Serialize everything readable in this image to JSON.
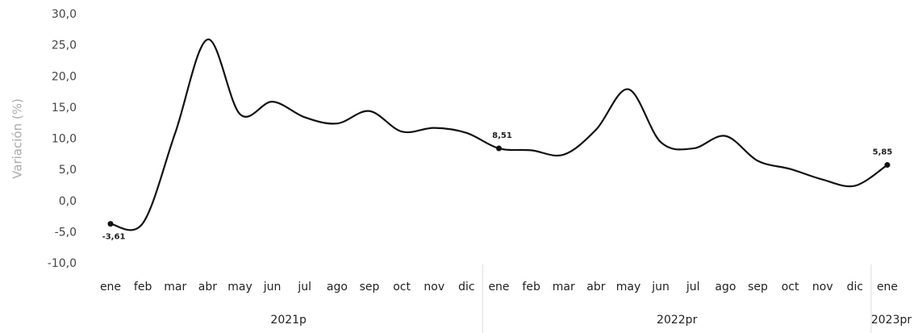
{
  "chart_data": {
    "type": "line",
    "y_label": "Variación (%)",
    "categories": [
      "ene",
      "feb",
      "mar",
      "abr",
      "may",
      "jun",
      "jul",
      "ago",
      "sep",
      "oct",
      "nov",
      "dic",
      "ene",
      "feb",
      "mar",
      "abr",
      "may",
      "jun",
      "jul",
      "ago",
      "sep",
      "oct",
      "nov",
      "dic",
      "ene"
    ],
    "category_groups": [
      {
        "label": "2021p",
        "count": 12
      },
      {
        "label": "2022pr",
        "count": 12
      },
      {
        "label": "2023pr",
        "count": 1
      }
    ],
    "series": [
      {
        "name": "Variación",
        "color": "#111111",
        "values": [
          -3.61,
          -3.5,
          11,
          26,
          14,
          16,
          13.5,
          12.5,
          14.5,
          11.2,
          11.8,
          11,
          8.51,
          8.2,
          7.5,
          11.5,
          18,
          9.5,
          8.5,
          10.5,
          6.5,
          5.2,
          3.5,
          2.5,
          5.85
        ],
        "value_labels": [
          "-3,61",
          null,
          null,
          null,
          null,
          null,
          null,
          null,
          null,
          null,
          null,
          null,
          "8,51",
          null,
          null,
          null,
          null,
          null,
          null,
          null,
          null,
          null,
          null,
          null,
          "5,85"
        ]
      }
    ],
    "ylim": [
      -10,
      30
    ],
    "yticks": [
      {
        "value": -10,
        "label": "-10,0"
      },
      {
        "value": -5,
        "label": "-5,0"
      },
      {
        "value": 0,
        "label": "0,0"
      },
      {
        "value": 5,
        "label": "5,0"
      },
      {
        "value": 10,
        "label": "10,0"
      },
      {
        "value": 15,
        "label": "15,0"
      },
      {
        "value": 20,
        "label": "20,0"
      },
      {
        "value": 25,
        "label": "25,0"
      },
      {
        "value": 30,
        "label": "30,0"
      }
    ],
    "grid": false
  }
}
